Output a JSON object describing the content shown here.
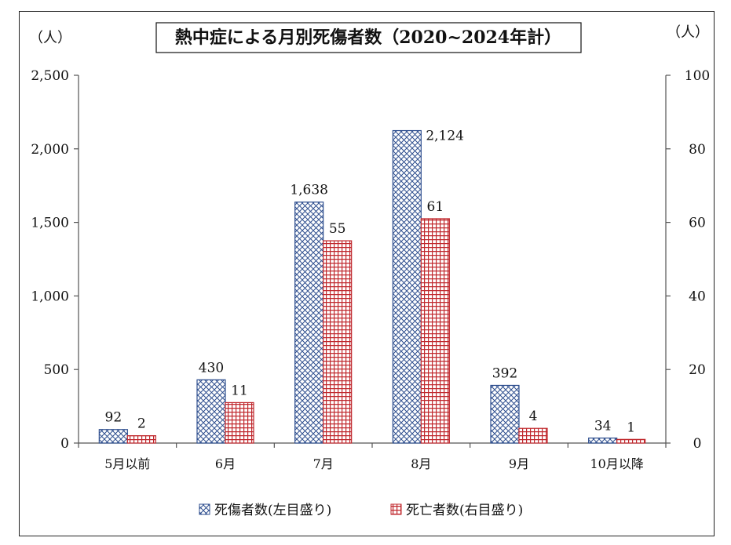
{
  "chart_data": {
    "type": "bar",
    "title": "熱中症による月別死傷者数（2020~2024年計）",
    "left_unit": "（人）",
    "right_unit": "（人）",
    "categories": [
      "5月以前",
      "6月",
      "7月",
      "8月",
      "9月",
      "10月以降"
    ],
    "series": [
      {
        "name": "死傷者数(左目盛り)",
        "axis": "left",
        "values": [
          92,
          430,
          1638,
          2124,
          392,
          34
        ],
        "labels": [
          "92",
          "430",
          "1,638",
          "2,124",
          "392",
          "34"
        ],
        "color": "#2f4f8f",
        "pattern": "cross-hatch"
      },
      {
        "name": "死亡者数(右目盛り)",
        "axis": "right",
        "values": [
          2,
          11,
          55,
          61,
          4,
          1
        ],
        "labels": [
          "2",
          "11",
          "55",
          "61",
          "4",
          "1"
        ],
        "color": "#c0282d",
        "pattern": "grid"
      }
    ],
    "y_left": {
      "range": [
        0,
        2500
      ],
      "ticks": [
        0,
        500,
        1000,
        1500,
        2000,
        2500
      ],
      "tick_labels": [
        "0",
        "500",
        "1,000",
        "1,500",
        "2,000",
        "2,500"
      ]
    },
    "y_right": {
      "range": [
        0,
        100
      ],
      "ticks": [
        0,
        20,
        40,
        60,
        80,
        100
      ],
      "tick_labels": [
        "0",
        "20",
        "40",
        "60",
        "80",
        "100"
      ]
    },
    "grid": false,
    "legend_position": "bottom"
  }
}
